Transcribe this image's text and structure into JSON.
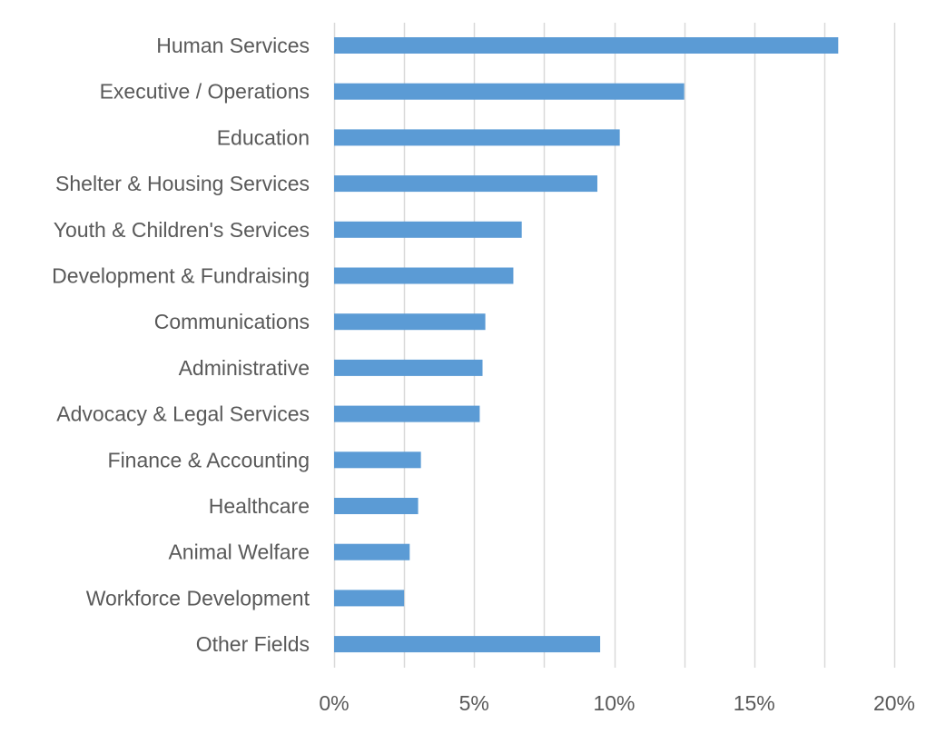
{
  "chart_data": {
    "type": "bar",
    "orientation": "horizontal",
    "categories": [
      "Human Services",
      "Executive / Operations",
      "Education",
      "Shelter & Housing Services",
      "Youth & Children's Services",
      "Development & Fundraising",
      "Communications",
      "Administrative",
      "Advocacy & Legal Services",
      "Finance & Accounting",
      "Healthcare",
      "Animal Welfare",
      "Workforce Development",
      "Other Fields"
    ],
    "values": [
      18.0,
      12.5,
      10.2,
      9.4,
      6.7,
      6.4,
      5.4,
      5.3,
      5.2,
      3.1,
      3.0,
      2.7,
      2.5,
      9.5
    ],
    "x_ticks": [
      0,
      2.5,
      5,
      7.5,
      10,
      12.5,
      15,
      17.5,
      20
    ],
    "x_tick_labels": [
      "0%",
      "",
      "5%",
      "",
      "10%",
      "",
      "15%",
      "",
      "20%"
    ],
    "xlim": [
      0,
      20
    ],
    "grid": "vertical",
    "title": "",
    "xlabel": "",
    "ylabel": "",
    "colors": {
      "bar": "#5B9BD5",
      "grid": "#D9D9D9",
      "text": "#595959"
    }
  }
}
